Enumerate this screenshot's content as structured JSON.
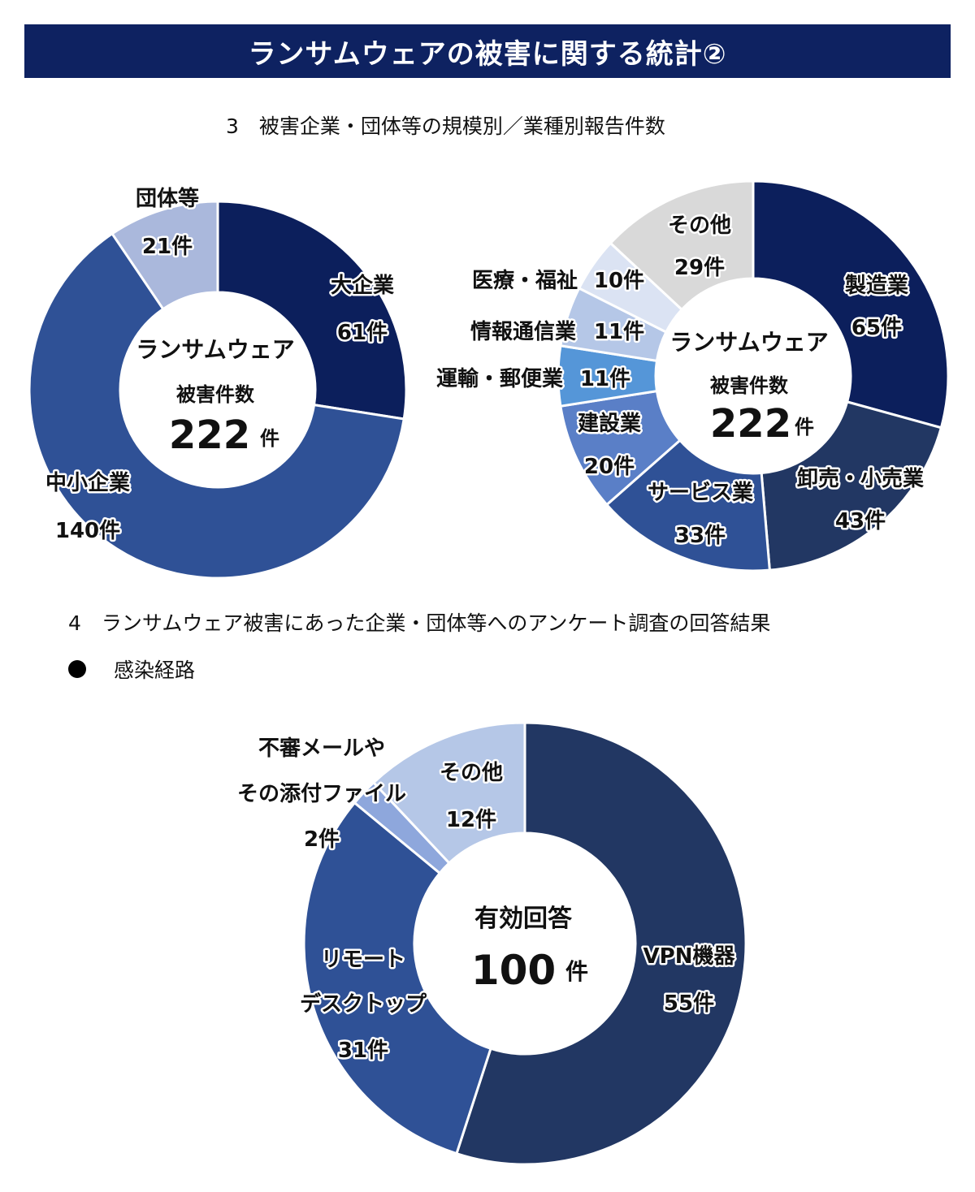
{
  "header": {
    "title": "ランサムウェアの被害に関する統計②"
  },
  "captions": {
    "section3": "3　被害企業・団体等の規模別／業種別報告件数",
    "section4": "4　ランサムウェア被害にあった企業・団体等へのアンケート調査の回答結果",
    "bullet": "感染経路"
  },
  "chart_data": [
    {
      "type": "pie",
      "variant": "donut",
      "center": {
        "line1": "ランサムウェア",
        "line2": "被害件数",
        "value": "222",
        "unit": "件"
      },
      "slices": [
        {
          "name": "大企業",
          "label": "61件",
          "value": 61,
          "color": "#0c1f5c"
        },
        {
          "name": "中小企業",
          "label": "140件",
          "value": 140,
          "color": "#2f5196"
        },
        {
          "name": "団体等",
          "label": "21件",
          "value": 21,
          "color": "#aab8dc"
        }
      ]
    },
    {
      "type": "pie",
      "variant": "donut",
      "center": {
        "line1": "ランサムウェア",
        "line2": "被害件数",
        "value": "222",
        "unit": "件"
      },
      "slices": [
        {
          "name": "製造業",
          "label": "65件",
          "value": 65,
          "color": "#0c1f5c"
        },
        {
          "name": "卸売・小売業",
          "label": "43件",
          "value": 43,
          "color": "#223763"
        },
        {
          "name": "サービス業",
          "label": "33件",
          "value": 33,
          "color": "#2f5196"
        },
        {
          "name": "建設業",
          "label": "20件",
          "value": 20,
          "color": "#5a7fc7"
        },
        {
          "name": "運輸・郵便業",
          "label": "11件",
          "value": 11,
          "color": "#5596d8"
        },
        {
          "name": "情報通信業",
          "label": "11件",
          "value": 11,
          "color": "#b5c7e7"
        },
        {
          "name": "医療・福祉",
          "label": "10件",
          "value": 10,
          "color": "#dbe3f3"
        },
        {
          "name": "その他",
          "label": "29件",
          "value": 29,
          "color": "#d9d9d9"
        }
      ]
    },
    {
      "type": "pie",
      "variant": "donut",
      "center": {
        "line1": "有効回答",
        "value": "100",
        "unit": "件"
      },
      "slices": [
        {
          "name": "VPN機器",
          "label": "55件",
          "value": 55,
          "color": "#223763"
        },
        {
          "name_lines": [
            "リモート",
            "デスクトップ"
          ],
          "label": "31件",
          "value": 31,
          "color": "#2f5196"
        },
        {
          "name_lines": [
            "不審メールや",
            "その添付ファイル"
          ],
          "label": "2件",
          "value": 2,
          "color": "#8ea7dc"
        },
        {
          "name": "その他",
          "label": "12件",
          "value": 12,
          "color": "#b5c7e7"
        }
      ]
    }
  ]
}
